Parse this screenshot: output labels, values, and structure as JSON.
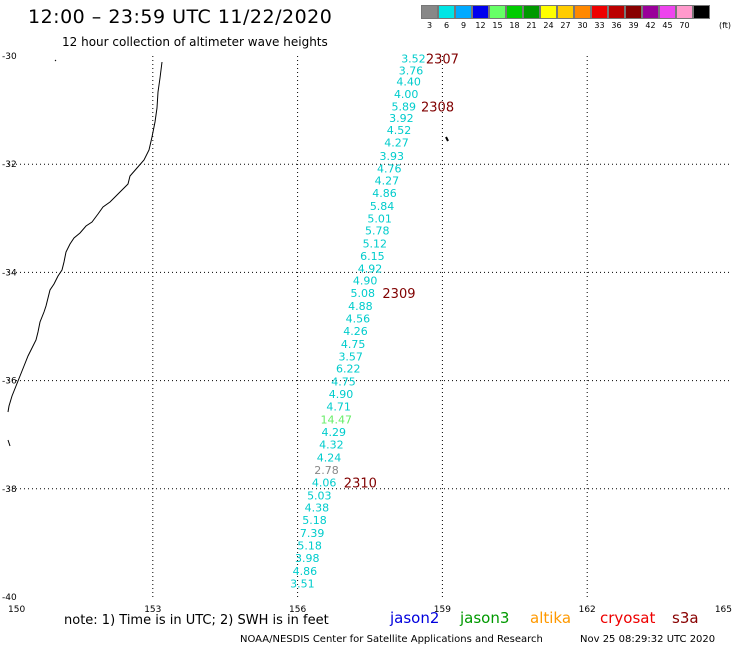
{
  "header": {
    "title": "12:00 – 23:59 UTC 11/22/2020",
    "subtitle": "12 hour collection of altimeter wave heights"
  },
  "legend": {
    "unit": "(ft)",
    "bins": [
      {
        "label": "3",
        "color": "#888888"
      },
      {
        "label": "6",
        "color": "#00e5e5"
      },
      {
        "label": "9",
        "color": "#00aaff"
      },
      {
        "label": "12",
        "color": "#0000ee"
      },
      {
        "label": "15",
        "color": "#66ff66"
      },
      {
        "label": "18",
        "color": "#00cc00"
      },
      {
        "label": "21",
        "color": "#009900"
      },
      {
        "label": "24",
        "color": "#ffff00"
      },
      {
        "label": "27",
        "color": "#ffcc00"
      },
      {
        "label": "30",
        "color": "#ff8800"
      },
      {
        "label": "33",
        "color": "#ee0000"
      },
      {
        "label": "36",
        "color": "#bb0000"
      },
      {
        "label": "39",
        "color": "#880000"
      },
      {
        "label": "42",
        "color": "#990099"
      },
      {
        "label": "45",
        "color": "#ee44ee"
      },
      {
        "label": "70",
        "color": "#ff99cc"
      },
      {
        "label": "",
        "color": "#000000"
      }
    ]
  },
  "chart_data": {
    "type": "scatter",
    "x_axis": {
      "ticks": [
        "150",
        "153",
        "156",
        "159",
        "162",
        "165"
      ],
      "range": [
        150,
        165
      ]
    },
    "y_axis": {
      "ticks": [
        "-30",
        "-32",
        "-34",
        "-36",
        "-38",
        "-40"
      ],
      "range": [
        -40,
        -30
      ]
    },
    "grid": "dotted",
    "observations": [
      {
        "lat": -30.05,
        "lon": 158.4,
        "swh": "3.52",
        "color": "#00cccc"
      },
      {
        "lat": -30.27,
        "lon": 158.35,
        "swh": "3.76",
        "color": "#00cccc"
      },
      {
        "lat": -30.47,
        "lon": 158.3,
        "swh": "4.40",
        "color": "#00cccc"
      },
      {
        "lat": -30.7,
        "lon": 158.25,
        "swh": "4.00",
        "color": "#00cccc"
      },
      {
        "lat": -30.93,
        "lon": 158.2,
        "swh": "5.89",
        "color": "#00cccc"
      },
      {
        "lat": -31.15,
        "lon": 158.15,
        "swh": "3.92",
        "color": "#00cccc"
      },
      {
        "lat": -31.37,
        "lon": 158.1,
        "swh": "4.52",
        "color": "#00cccc"
      },
      {
        "lat": -31.6,
        "lon": 158.05,
        "swh": "4.27",
        "color": "#00cccc"
      },
      {
        "lat": -31.85,
        "lon": 157.95,
        "swh": "3.93",
        "color": "#00cccc"
      },
      {
        "lat": -32.08,
        "lon": 157.9,
        "swh": "4.76",
        "color": "#00cccc"
      },
      {
        "lat": -32.3,
        "lon": 157.85,
        "swh": "4.27",
        "color": "#00cccc"
      },
      {
        "lat": -32.53,
        "lon": 157.8,
        "swh": "4.86",
        "color": "#00cccc"
      },
      {
        "lat": -32.77,
        "lon": 157.75,
        "swh": "5.84",
        "color": "#00cccc"
      },
      {
        "lat": -33.0,
        "lon": 157.7,
        "swh": "5.01",
        "color": "#00cccc"
      },
      {
        "lat": -33.23,
        "lon": 157.65,
        "swh": "5.78",
        "color": "#00cccc"
      },
      {
        "lat": -33.47,
        "lon": 157.6,
        "swh": "5.12",
        "color": "#00cccc"
      },
      {
        "lat": -33.7,
        "lon": 157.55,
        "swh": "6.15",
        "color": "#00cccc"
      },
      {
        "lat": -33.93,
        "lon": 157.5,
        "swh": "4.92",
        "color": "#00cccc"
      },
      {
        "lat": -34.15,
        "lon": 157.4,
        "swh": "4.90",
        "color": "#00cccc"
      },
      {
        "lat": -34.38,
        "lon": 157.35,
        "swh": "5.08",
        "color": "#00cccc"
      },
      {
        "lat": -34.62,
        "lon": 157.3,
        "swh": "4.88",
        "color": "#00cccc"
      },
      {
        "lat": -34.85,
        "lon": 157.25,
        "swh": "4.56",
        "color": "#00cccc"
      },
      {
        "lat": -35.08,
        "lon": 157.2,
        "swh": "4.26",
        "color": "#00cccc"
      },
      {
        "lat": -35.32,
        "lon": 157.15,
        "swh": "4.75",
        "color": "#00cccc"
      },
      {
        "lat": -35.55,
        "lon": 157.1,
        "swh": "3.57",
        "color": "#00cccc"
      },
      {
        "lat": -35.78,
        "lon": 157.05,
        "swh": "6.22",
        "color": "#00cccc"
      },
      {
        "lat": -36.02,
        "lon": 156.95,
        "swh": "4.75",
        "color": "#00cccc"
      },
      {
        "lat": -36.25,
        "lon": 156.9,
        "swh": "4.90",
        "color": "#00cccc"
      },
      {
        "lat": -36.48,
        "lon": 156.85,
        "swh": "4.71",
        "color": "#00cccc"
      },
      {
        "lat": -36.72,
        "lon": 156.8,
        "swh": "14.47",
        "color": "#66ee66"
      },
      {
        "lat": -36.95,
        "lon": 156.75,
        "swh": "4.29",
        "color": "#00cccc"
      },
      {
        "lat": -37.18,
        "lon": 156.7,
        "swh": "4.32",
        "color": "#00cccc"
      },
      {
        "lat": -37.42,
        "lon": 156.65,
        "swh": "4.24",
        "color": "#00cccc"
      },
      {
        "lat": -37.65,
        "lon": 156.6,
        "swh": "2.78",
        "color": "#888888"
      },
      {
        "lat": -37.88,
        "lon": 156.55,
        "swh": "4.06",
        "color": "#00cccc"
      },
      {
        "lat": -38.12,
        "lon": 156.45,
        "swh": "5.03",
        "color": "#00cccc"
      },
      {
        "lat": -38.35,
        "lon": 156.4,
        "swh": "4.38",
        "color": "#00cccc"
      },
      {
        "lat": -38.58,
        "lon": 156.35,
        "swh": "5.18",
        "color": "#00cccc"
      },
      {
        "lat": -38.82,
        "lon": 156.3,
        "swh": "7.39",
        "color": "#00cccc"
      },
      {
        "lat": -39.05,
        "lon": 156.25,
        "swh": "5.18",
        "color": "#00cccc"
      },
      {
        "lat": -39.28,
        "lon": 156.2,
        "swh": "3.98",
        "color": "#00cccc"
      },
      {
        "lat": -39.52,
        "lon": 156.15,
        "swh": "4.86",
        "color": "#00cccc"
      },
      {
        "lat": -39.75,
        "lon": 156.1,
        "swh": "3.51",
        "color": "#00cccc"
      }
    ],
    "time_labels": [
      {
        "lat": -30.05,
        "lon": 159.0,
        "text": "2307"
      },
      {
        "lat": -30.93,
        "lon": 158.9,
        "text": "2308"
      },
      {
        "lat": -34.38,
        "lon": 158.1,
        "text": "2309"
      },
      {
        "lat": -37.88,
        "lon": 157.3,
        "text": "2310"
      }
    ]
  },
  "footer": {
    "note": "note: 1) Time is in UTC; 2) SWH is in feet",
    "satellites": [
      {
        "name": "jason2",
        "color": "#0000dd"
      },
      {
        "name": "jason3",
        "color": "#009900"
      },
      {
        "name": "altika",
        "color": "#ff9900"
      },
      {
        "name": "cryosat",
        "color": "#ee0000"
      },
      {
        "name": "s3a",
        "color": "#880000"
      }
    ],
    "credit": "NOAA/NESDIS Center for Satellite Applications and Research",
    "timestamp": "Nov 25 08:29:32 UTC 2020"
  }
}
